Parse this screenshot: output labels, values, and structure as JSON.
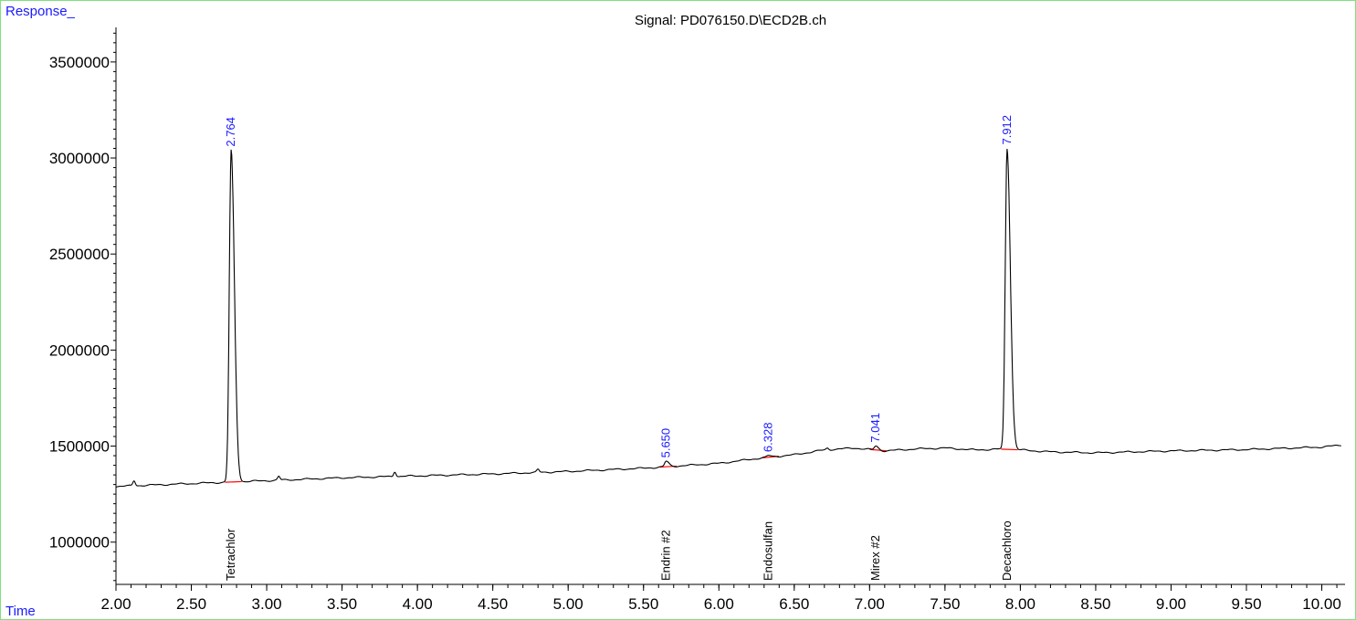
{
  "chart_data": {
    "type": "line",
    "title": "Signal: PD076150.D\\ECD2B.ch",
    "ylabel": "Response_",
    "xlabel": "Time",
    "xlim": [
      2.0,
      10.13
    ],
    "ylim": [
      780000,
      3680000
    ],
    "x_ticks": [
      2.0,
      2.5,
      3.0,
      3.5,
      4.0,
      4.5,
      5.0,
      5.5,
      6.0,
      6.5,
      7.0,
      7.5,
      8.0,
      8.5,
      9.0,
      9.5,
      10.0
    ],
    "x_tick_labels": [
      "2.00",
      "2.50",
      "3.00",
      "3.50",
      "4.00",
      "4.50",
      "5.00",
      "5.50",
      "6.00",
      "6.50",
      "7.00",
      "7.50",
      "8.00",
      "8.50",
      "9.00",
      "9.50",
      "10.00"
    ],
    "y_ticks": [
      1000000,
      1500000,
      2000000,
      2500000,
      3000000,
      3500000
    ],
    "y_tick_labels": [
      "1000000",
      "1500000",
      "2000000",
      "2500000",
      "3000000",
      "3500000"
    ],
    "colors": {
      "trace": "#000000",
      "baseline": "#ff0000",
      "rt_label": "#1a1aff",
      "axis_label": "#1a1aff",
      "frame": "#7fe07f"
    },
    "baseline_x": [
      2.0,
      2.5,
      3.0,
      3.5,
      4.0,
      4.5,
      5.0,
      5.5,
      6.0,
      6.3,
      6.5,
      6.7,
      6.9,
      7.1,
      7.3,
      7.5,
      7.7,
      7.9,
      8.0,
      8.2,
      8.5,
      9.0,
      9.5,
      10.0,
      10.13
    ],
    "baseline_y": [
      1290000,
      1305000,
      1320000,
      1335000,
      1345000,
      1355000,
      1368000,
      1385000,
      1410000,
      1440000,
      1455000,
      1480000,
      1490000,
      1475000,
      1485000,
      1490000,
      1480000,
      1485000,
      1480000,
      1470000,
      1465000,
      1475000,
      1482000,
      1495000,
      1505000
    ],
    "peaks": [
      {
        "rt": 2.764,
        "rt_label": "2.764",
        "height": 3040000,
        "width": 0.012,
        "compound": "Tetrachlor"
      },
      {
        "rt": 5.65,
        "rt_label": "5.650",
        "height": 1420000,
        "width": 0.01,
        "compound": "Endrin #2"
      },
      {
        "rt": 6.328,
        "rt_label": "6.328",
        "height": 1450000,
        "width": 0.01,
        "compound": "Endosulfan"
      },
      {
        "rt": 7.041,
        "rt_label": "7.041",
        "height": 1500000,
        "width": 0.01,
        "compound": "Mirex #2"
      },
      {
        "rt": 7.912,
        "rt_label": "7.912",
        "height": 3050000,
        "width": 0.012,
        "compound": "Decachloro"
      }
    ],
    "minor_peaks": [
      {
        "x": 2.12,
        "h": 1320000
      },
      {
        "x": 3.08,
        "h": 1342000
      },
      {
        "x": 3.85,
        "h": 1368000
      },
      {
        "x": 4.8,
        "h": 1378000
      },
      {
        "x": 6.72,
        "h": 1490000
      }
    ]
  }
}
